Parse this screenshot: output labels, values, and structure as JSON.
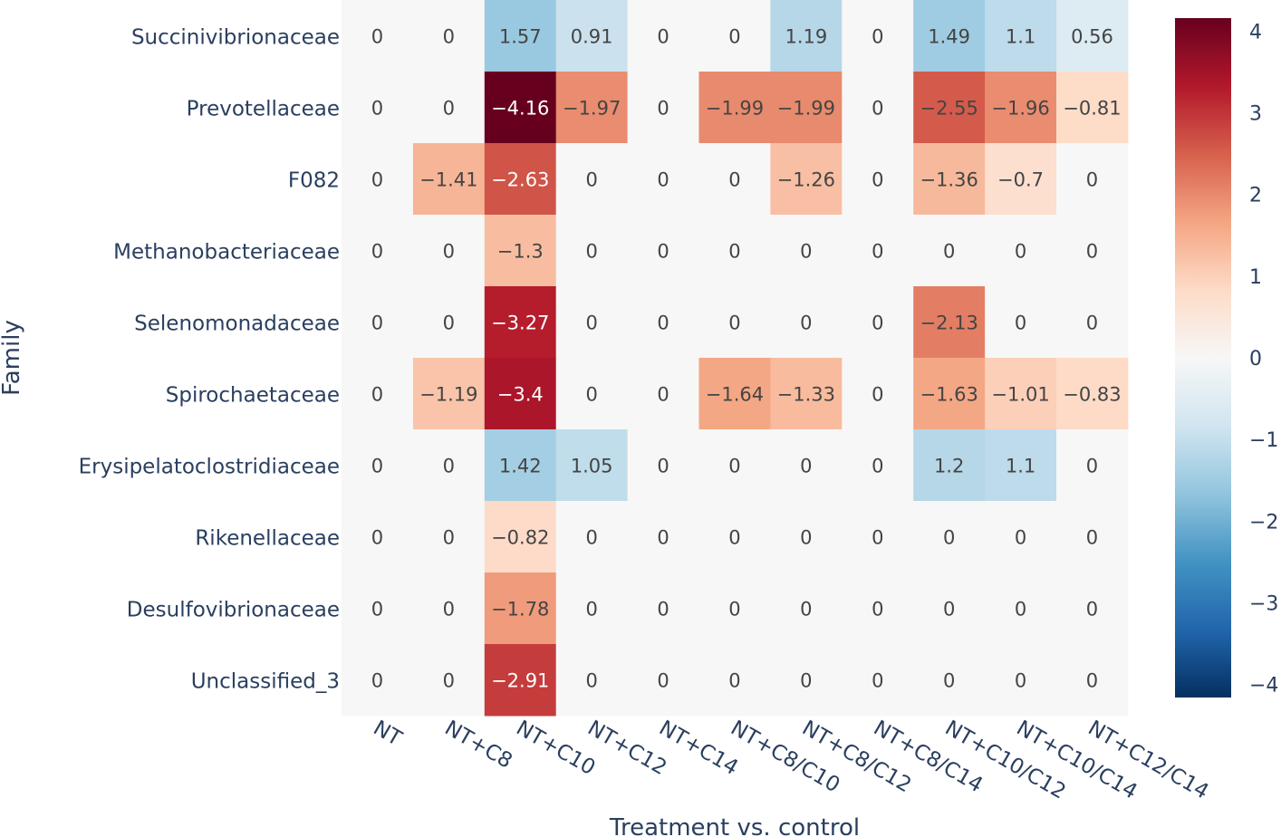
{
  "chart_data": {
    "type": "heatmap",
    "xlabel": "Treatment vs. control",
    "ylabel": "Family",
    "x": [
      "NT",
      "NT+C8",
      "NT+C10",
      "NT+C12",
      "NT+C14",
      "NT+C8/C10",
      "NT+C8/C12",
      "NT+C8/C14",
      "NT+C10/C12",
      "NT+C10/C14",
      "NT+C12/C14"
    ],
    "y": [
      "Succinivibrionaceae",
      "Prevotellaceae",
      "F082",
      "Methanobacteriaceae",
      "Selenomonadaceae",
      "Spirochaetaceae",
      "Erysipelatoclostridiaceae",
      "Rikenellaceae",
      "Desulfovibrionaceae",
      "Unclassified_3"
    ],
    "values": [
      [
        0,
        0,
        1.57,
        0.91,
        0,
        0,
        1.19,
        0,
        1.49,
        1.1,
        0.56
      ],
      [
        0,
        0,
        -4.16,
        -1.97,
        0,
        -1.99,
        -1.99,
        0,
        -2.55,
        -1.96,
        -0.81
      ],
      [
        0,
        -1.41,
        -2.63,
        0,
        0,
        0,
        -1.26,
        0,
        -1.36,
        -0.7,
        0
      ],
      [
        0,
        0,
        -1.3,
        0,
        0,
        0,
        0,
        0,
        0,
        0,
        0
      ],
      [
        0,
        0,
        -3.27,
        0,
        0,
        0,
        0,
        0,
        -2.13,
        0,
        0
      ],
      [
        0,
        -1.19,
        -3.4,
        0,
        0,
        -1.64,
        -1.33,
        0,
        -1.63,
        -1.01,
        -0.83
      ],
      [
        0,
        0,
        1.42,
        1.05,
        0,
        0,
        0,
        0,
        1.2,
        1.1,
        0
      ],
      [
        0,
        0,
        -0.82,
        0,
        0,
        0,
        0,
        0,
        0,
        0,
        0
      ],
      [
        0,
        0,
        -1.78,
        0,
        0,
        0,
        0,
        0,
        0,
        0,
        0
      ],
      [
        0,
        0,
        -2.91,
        0,
        0,
        0,
        0,
        0,
        0,
        0,
        0
      ]
    ],
    "colorbar": {
      "ticks": [
        4,
        3,
        2,
        1,
        0,
        -1,
        -2,
        -3,
        -4
      ],
      "colors": [
        "#053061",
        "#2166ac",
        "#4393c3",
        "#92c5de",
        "#d1e5f0",
        "#f7f7f7",
        "#fddbc7",
        "#f4a582",
        "#d6604d",
        "#b2182b",
        "#67001f"
      ]
    },
    "zero_color": "#f7f7f7"
  }
}
